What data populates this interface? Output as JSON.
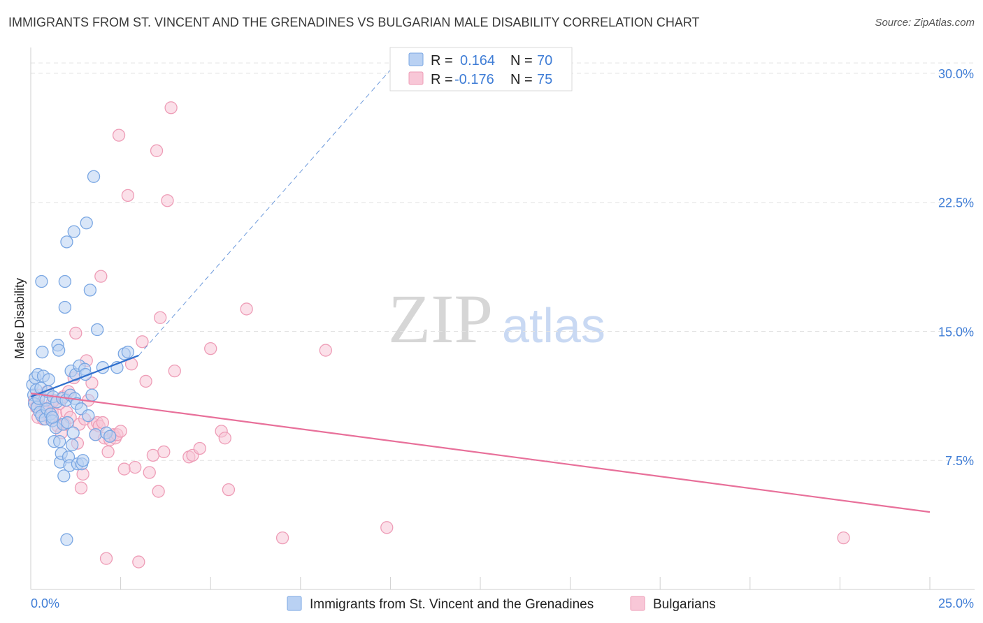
{
  "title": "IMMIGRANTS FROM ST. VINCENT AND THE GRENADINES VS BULGARIAN MALE DISABILITY CORRELATION CHART",
  "source": "Source: ZipAtlas.com",
  "watermark": {
    "zip": "ZIP",
    "atlas": "atlas"
  },
  "chart_data": {
    "type": "scatter",
    "title": "IMMIGRANTS FROM ST. VINCENT AND THE GRENADINES VS BULGARIAN MALE DISABILITY CORRELATION CHART",
    "xlabel": "",
    "ylabel": "Male Disability",
    "xlim": [
      0,
      25
    ],
    "ylim": [
      0,
      31.5
    ],
    "x_tick_labels": {
      "min": "0.0%",
      "max": "25.0%"
    },
    "y_ticks": [
      {
        "value": 7.5,
        "label": "7.5%"
      },
      {
        "value": 15.0,
        "label": "15.0%"
      },
      {
        "value": 22.5,
        "label": "22.5%"
      },
      {
        "value": 30.0,
        "label": "30.0%"
      }
    ],
    "legend": {
      "rows": [
        {
          "r_label": "R =",
          "r_value": "0.164",
          "n_label": "N =",
          "n_value": "70"
        },
        {
          "r_label": "R =",
          "r_value": "-0.176",
          "n_label": "N =",
          "n_value": "75"
        }
      ]
    },
    "series": [
      {
        "name": "Immigrants from St. Vincent and the Grenadines",
        "color": "#7aa7e3",
        "fill": "#b9d1f3",
        "trend_color": "#2f6fcd",
        "trend": {
          "solid": [
            [
              0,
              11.2
            ],
            [
              3.0,
              13.6
            ]
          ],
          "dashed": [
            [
              3.0,
              13.6
            ],
            [
              10.0,
              30.2
            ]
          ]
        },
        "points": [
          [
            0.05,
            11.9
          ],
          [
            0.08,
            11.3
          ],
          [
            0.1,
            10.8
          ],
          [
            0.12,
            12.3
          ],
          [
            0.15,
            11.6
          ],
          [
            0.18,
            10.6
          ],
          [
            0.2,
            12.5
          ],
          [
            0.22,
            11.1
          ],
          [
            0.25,
            10.3
          ],
          [
            0.28,
            11.7
          ],
          [
            0.3,
            10.1
          ],
          [
            0.32,
            13.8
          ],
          [
            0.35,
            12.4
          ],
          [
            0.4,
            9.9
          ],
          [
            0.42,
            11.0
          ],
          [
            0.45,
            10.5
          ],
          [
            0.48,
            11.5
          ],
          [
            0.5,
            12.2
          ],
          [
            0.55,
            10.2
          ],
          [
            0.6,
            9.8
          ],
          [
            0.62,
            11.2
          ],
          [
            0.65,
            8.6
          ],
          [
            0.7,
            9.4
          ],
          [
            0.72,
            10.9
          ],
          [
            0.75,
            14.2
          ],
          [
            0.78,
            13.9
          ],
          [
            0.8,
            8.6
          ],
          [
            0.82,
            7.4
          ],
          [
            0.85,
            7.9
          ],
          [
            0.88,
            11.1
          ],
          [
            0.9,
            9.6
          ],
          [
            0.92,
            6.6
          ],
          [
            0.95,
            16.4
          ],
          [
            0.98,
            11.0
          ],
          [
            1.0,
            20.2
          ],
          [
            1.02,
            9.7
          ],
          [
            1.05,
            7.7
          ],
          [
            1.08,
            7.2
          ],
          [
            1.1,
            11.3
          ],
          [
            1.12,
            12.7
          ],
          [
            1.15,
            8.4
          ],
          [
            1.18,
            9.1
          ],
          [
            1.2,
            20.8
          ],
          [
            1.22,
            11.1
          ],
          [
            1.25,
            12.5
          ],
          [
            1.28,
            10.8
          ],
          [
            1.3,
            7.3
          ],
          [
            1.35,
            13.0
          ],
          [
            1.4,
            10.5
          ],
          [
            1.42,
            7.3
          ],
          [
            1.45,
            7.5
          ],
          [
            1.5,
            12.8
          ],
          [
            1.52,
            12.5
          ],
          [
            1.55,
            21.3
          ],
          [
            1.6,
            10.1
          ],
          [
            1.65,
            17.4
          ],
          [
            1.7,
            11.3
          ],
          [
            1.75,
            24.0
          ],
          [
            1.8,
            9.0
          ],
          [
            1.85,
            15.1
          ],
          [
            2.0,
            12.9
          ],
          [
            2.1,
            9.1
          ],
          [
            2.2,
            8.9
          ],
          [
            2.4,
            12.9
          ],
          [
            2.6,
            13.7
          ],
          [
            2.7,
            13.8
          ],
          [
            0.3,
            17.9
          ],
          [
            0.95,
            17.9
          ],
          [
            1.0,
            2.9
          ],
          [
            0.6,
            10.0
          ]
        ]
      },
      {
        "name": "Bulgarians",
        "color": "#ee9db7",
        "fill": "#f8c7d7",
        "trend_color": "#e8709a",
        "trend": {
          "solid": [
            [
              0,
              11.4
            ],
            [
              25,
              4.5
            ]
          ]
        },
        "points": [
          [
            0.1,
            11.0
          ],
          [
            0.15,
            10.6
          ],
          [
            0.2,
            10.0
          ],
          [
            0.25,
            11.3
          ],
          [
            0.3,
            10.6
          ],
          [
            0.35,
            9.9
          ],
          [
            0.4,
            10.5
          ],
          [
            0.45,
            11.5
          ],
          [
            0.5,
            10.4
          ],
          [
            0.55,
            9.9
          ],
          [
            0.6,
            10.3
          ],
          [
            0.65,
            11.0
          ],
          [
            0.7,
            10.2
          ],
          [
            0.75,
            9.5
          ],
          [
            0.8,
            10.8
          ],
          [
            0.85,
            9.1
          ],
          [
            0.9,
            11.2
          ],
          [
            0.95,
            9.6
          ],
          [
            1.0,
            10.3
          ],
          [
            1.05,
            11.5
          ],
          [
            1.1,
            10.0
          ],
          [
            1.2,
            12.3
          ],
          [
            1.25,
            14.9
          ],
          [
            1.3,
            8.5
          ],
          [
            1.35,
            9.6
          ],
          [
            1.4,
            5.9
          ],
          [
            1.45,
            6.7
          ],
          [
            1.5,
            9.9
          ],
          [
            1.55,
            13.3
          ],
          [
            1.6,
            11.0
          ],
          [
            1.7,
            12.0
          ],
          [
            1.75,
            9.6
          ],
          [
            1.8,
            9.0
          ],
          [
            1.85,
            9.7
          ],
          [
            1.9,
            9.5
          ],
          [
            1.95,
            18.2
          ],
          [
            2.0,
            9.7
          ],
          [
            2.05,
            8.8
          ],
          [
            2.1,
            1.8
          ],
          [
            2.15,
            8.0
          ],
          [
            2.2,
            8.7
          ],
          [
            2.3,
            9.0
          ],
          [
            2.35,
            8.8
          ],
          [
            2.4,
            9.0
          ],
          [
            2.45,
            26.4
          ],
          [
            2.5,
            9.2
          ],
          [
            2.6,
            7.0
          ],
          [
            2.7,
            22.9
          ],
          [
            2.8,
            13.1
          ],
          [
            2.9,
            7.1
          ],
          [
            3.0,
            1.6
          ],
          [
            3.1,
            14.4
          ],
          [
            3.2,
            12.1
          ],
          [
            3.3,
            6.8
          ],
          [
            3.4,
            7.8
          ],
          [
            3.5,
            25.5
          ],
          [
            3.55,
            5.7
          ],
          [
            3.6,
            15.8
          ],
          [
            3.7,
            8.0
          ],
          [
            3.8,
            22.6
          ],
          [
            3.9,
            28.0
          ],
          [
            4.0,
            12.7
          ],
          [
            4.4,
            7.7
          ],
          [
            4.5,
            7.8
          ],
          [
            4.7,
            8.2
          ],
          [
            5.0,
            14.0
          ],
          [
            5.3,
            9.2
          ],
          [
            5.4,
            8.8
          ],
          [
            5.5,
            5.8
          ],
          [
            6.0,
            16.3
          ],
          [
            7.0,
            3.0
          ],
          [
            8.2,
            13.9
          ],
          [
            9.9,
            3.6
          ],
          [
            22.6,
            3.0
          ],
          [
            0.6,
            10.9
          ]
        ]
      }
    ]
  }
}
